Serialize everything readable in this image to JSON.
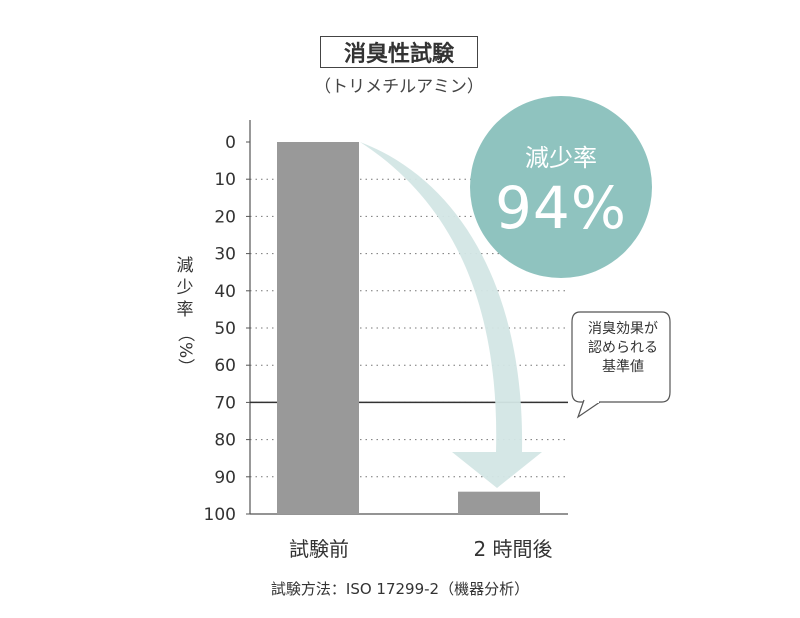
{
  "title": "消臭性試験",
  "subtitle": "（トリメチルアミン）",
  "ylabel": {
    "vertical": "減少率",
    "paren": "（%）"
  },
  "badge": {
    "label": "減少率",
    "value": "94%",
    "color": "#8fc3bf"
  },
  "annotation": {
    "lines": [
      "消臭効果が",
      "認められる",
      "基準値"
    ]
  },
  "method": "試験方法：ISO 17299-2（機器分析）",
  "colors": {
    "bar": "#999999",
    "arrow": "#d3e6e5",
    "reference_line": "#333333"
  },
  "chart_data": {
    "type": "bar",
    "categories": [
      "試験前",
      "2 時間後"
    ],
    "values": [
      0,
      94
    ],
    "reference_line": {
      "value": 70
    },
    "ylim": [
      0,
      100
    ],
    "y_inverted": true,
    "yticks": [
      "0",
      "10",
      "20",
      "30",
      "40",
      "50",
      "60",
      "70",
      "80",
      "90",
      "100"
    ],
    "grid": true,
    "xlabel": "",
    "ylabel": "減少率（%）"
  }
}
